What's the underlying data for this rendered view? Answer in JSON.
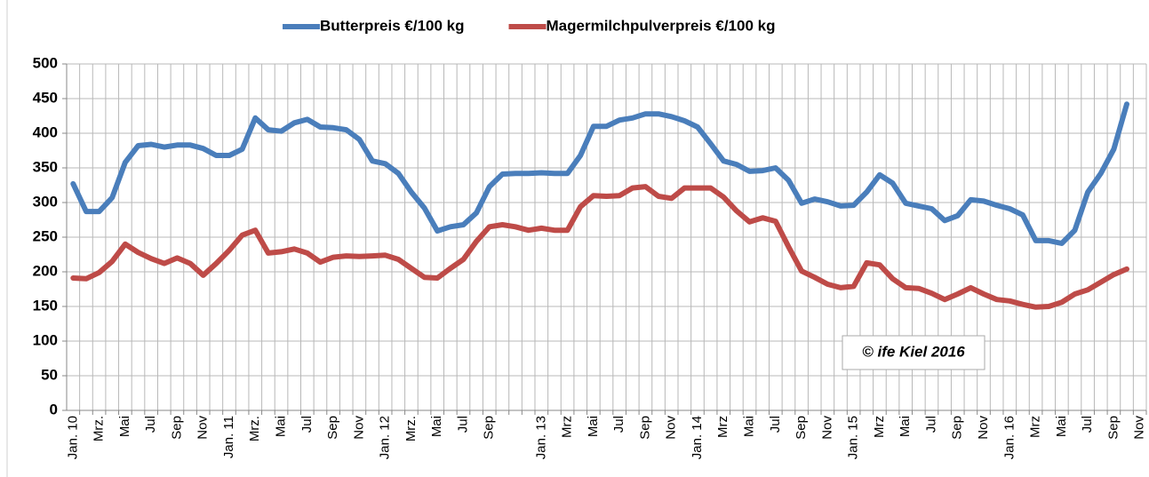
{
  "chart_data": {
    "type": "line",
    "categories": [
      "Jan. 10",
      null,
      "Mrz.",
      null,
      "Mai",
      null,
      "Jul",
      null,
      "Sep",
      null,
      "Nov",
      null,
      "Jan. 11",
      null,
      "Mrz.",
      null,
      "Mai",
      null,
      "Jul",
      null,
      "Sep",
      null,
      "Nov",
      null,
      "Jan. 12",
      null,
      "Mrz.",
      null,
      "Mai",
      null,
      "Jul",
      null,
      "Sep",
      null,
      null,
      null,
      "Jan. 13",
      null,
      "Mrz",
      null,
      "Mai",
      null,
      "Jul",
      null,
      "Sep",
      null,
      "Nov",
      null,
      "Jan. 14",
      null,
      "Mrz",
      null,
      "Mai",
      null,
      "Jul",
      null,
      "Sep",
      null,
      "Nov",
      null,
      "Jan. 15",
      null,
      "Mrz",
      null,
      "Mai",
      null,
      "Jul",
      null,
      "Sep",
      null,
      "Nov",
      null,
      "Jan. 16",
      null,
      "Mrz",
      null,
      "Mai",
      null,
      "Jul",
      null,
      "Sep",
      null,
      "Nov"
    ],
    "series": [
      {
        "name": "Butterpreis €/100 kg",
        "color": "#4a7ebb",
        "values": [
          327,
          287,
          287,
          307,
          358,
          382,
          384,
          380,
          383,
          383,
          378,
          368,
          368,
          377,
          422,
          405,
          403,
          415,
          420,
          409,
          408,
          405,
          391,
          360,
          356,
          342,
          315,
          292,
          259,
          265,
          268,
          285,
          323,
          341,
          342,
          342,
          343,
          342,
          342,
          368,
          410,
          410,
          419,
          422,
          428,
          428,
          424,
          418,
          409,
          385,
          360,
          355,
          345,
          346,
          350,
          332,
          299,
          305,
          301,
          295,
          296,
          315,
          340,
          328,
          299,
          295,
          291,
          274,
          281,
          304,
          302,
          296,
          291,
          282,
          245,
          245,
          241,
          260,
          315,
          342,
          377,
          442,
          null
        ]
      },
      {
        "name": "Magermilchpulverpreis €/100 kg",
        "color": "#be4b48",
        "values": [
          191,
          190,
          199,
          215,
          240,
          228,
          219,
          212,
          220,
          212,
          195,
          212,
          231,
          253,
          260,
          227,
          229,
          233,
          227,
          214,
          221,
          223,
          222,
          223,
          224,
          218,
          205,
          192,
          191,
          205,
          218,
          244,
          265,
          268,
          265,
          260,
          263,
          260,
          260,
          294,
          310,
          309,
          310,
          321,
          323,
          309,
          306,
          321,
          321,
          321,
          308,
          288,
          272,
          278,
          273,
          236,
          201,
          192,
          182,
          177,
          179,
          213,
          210,
          190,
          177,
          176,
          169,
          160,
          168,
          177,
          168,
          160,
          158,
          153,
          149,
          150,
          156,
          168,
          174,
          185,
          196,
          204,
          null
        ]
      }
    ],
    "ylim": [
      0,
      500
    ],
    "yticks": [
      0,
      50,
      100,
      150,
      200,
      250,
      300,
      350,
      400,
      450,
      500
    ],
    "grid": true,
    "legend": "top",
    "annotation": "© ife Kiel 2016"
  }
}
